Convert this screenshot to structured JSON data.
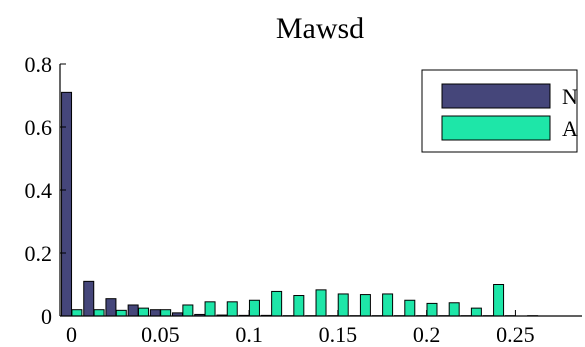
{
  "chart_data": {
    "type": "bar",
    "title": "Mawsd",
    "xlabel": "",
    "ylabel": "",
    "xlim": [
      -0.0065,
      0.2875
    ],
    "ylim": [
      0,
      0.8
    ],
    "xticks": [
      "0",
      "0.05",
      "0.1",
      "0.15",
      "0.2",
      "0.25"
    ],
    "xtick_values": [
      0,
      0.05,
      0.1,
      0.15,
      0.2,
      0.25
    ],
    "yticks": [
      "0",
      "0.2",
      "0.4",
      "0.6",
      "0.8"
    ],
    "ytick_values": [
      0,
      0.2,
      0.4,
      0.6,
      0.8
    ],
    "bin_centers": [
      0,
      0.0125,
      0.025,
      0.0375,
      0.05,
      0.0625,
      0.075,
      0.0875,
      0.1,
      0.1125,
      0.125,
      0.1375,
      0.15,
      0.1625,
      0.175,
      0.1875,
      0.2,
      0.2125,
      0.225,
      0.2375,
      0.25,
      0.2625,
      0.275,
      0.2875
    ],
    "series": [
      {
        "name": "N",
        "color": "#45467a",
        "values": [
          0.71,
          0.11,
          0.055,
          0.035,
          0.02,
          0.01,
          0.005,
          0.003,
          0.002,
          0.002,
          0.001,
          0.001,
          0.001,
          0.001,
          0.001,
          0.001,
          0.001,
          0.001,
          0.001,
          0.001,
          0.001,
          0.001,
          0,
          0
        ]
      },
      {
        "name": "A",
        "color": "#1ee6a8",
        "values": [
          0.02,
          0.02,
          0.018,
          0.025,
          0.02,
          0.035,
          0.045,
          0.045,
          0.05,
          0.078,
          0.065,
          0.083,
          0.07,
          0.068,
          0.07,
          0.05,
          0.04,
          0.042,
          0.025,
          0.1,
          0.0,
          0.0,
          0.0,
          0.0
        ]
      }
    ],
    "legend_position": "top-right",
    "grid": false
  }
}
